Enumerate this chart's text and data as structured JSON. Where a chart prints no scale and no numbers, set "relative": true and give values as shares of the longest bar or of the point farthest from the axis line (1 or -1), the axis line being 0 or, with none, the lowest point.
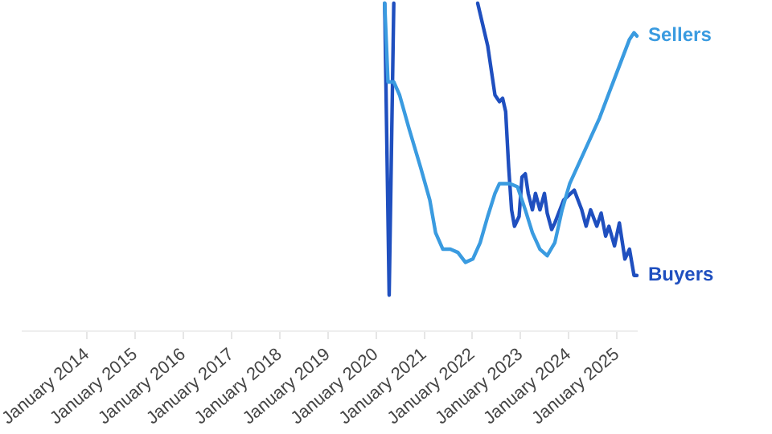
{
  "chart_data": {
    "type": "line",
    "relative": true,
    "legend": false,
    "xlim": [
      "2012-09",
      "2025-06"
    ],
    "xticks": [
      {
        "value": "2014-01",
        "label": "January 2014"
      },
      {
        "value": "2015-01",
        "label": "January 2015"
      },
      {
        "value": "2016-01",
        "label": "January 2016"
      },
      {
        "value": "2017-01",
        "label": "January 2017"
      },
      {
        "value": "2018-01",
        "label": "January 2018"
      },
      {
        "value": "2019-01",
        "label": "January 2019"
      },
      {
        "value": "2020-01",
        "label": "January 2020"
      },
      {
        "value": "2021-01",
        "label": "January 2021"
      },
      {
        "value": "2022-01",
        "label": "January 2022"
      },
      {
        "value": "2023-01",
        "label": "January 2023"
      },
      {
        "value": "2024-01",
        "label": "January 2024"
      },
      {
        "value": "2025-01",
        "label": "January 2025"
      }
    ],
    "series": [
      {
        "name": "Sellers",
        "color": "#3a9be0",
        "x": [
          "2020-03-07",
          "2020-04-01",
          "2020-05-15",
          "2020-06-28",
          "2020-09-06",
          "2020-12-04",
          "2021-02-12",
          "2021-03-28",
          "2021-05-22",
          "2021-07-18",
          "2021-09-13",
          "2021-11-09",
          "2022-01-04",
          "2022-03-01",
          "2022-04-27",
          "2022-06-21",
          "2022-07-25",
          "2022-10-13",
          "2022-12-09",
          "2023-02-06",
          "2023-04-01",
          "2023-05-28",
          "2023-07-22",
          "2023-09-18",
          "2023-11-12",
          "2024-01-09",
          "2024-05-01",
          "2024-08-22",
          "2024-12-13",
          "2025-04-06",
          "2025-05-10",
          "2025-06-01"
        ],
        "values": [
          1,
          0.76,
          0.76,
          0.72,
          0.62,
          0.5,
          0.4,
          0.3,
          0.25,
          0.25,
          0.24,
          0.21,
          0.22,
          0.27,
          0.35,
          0.42,
          0.45,
          0.45,
          0.44,
          0.37,
          0.3,
          0.25,
          0.23,
          0.27,
          0.37,
          0.45,
          0.55,
          0.65,
          0.77,
          0.89,
          0.91,
          0.9
        ]
      },
      {
        "name": "Buyers",
        "color": "#1f4fbf",
        "x": [
          "2020-03-07",
          "2020-04-10",
          "2020-05-15",
          "2021-06-01",
          "2022-02-10",
          "2022-04-27",
          "2022-06-21",
          "2022-07-25",
          "2022-08-18",
          "2022-09-10",
          "2022-10-03",
          "2022-10-25",
          "2022-11-16",
          "2022-12-21",
          "2023-01-12",
          "2023-02-06",
          "2023-02-28",
          "2023-04-01",
          "2023-04-24",
          "2023-05-28",
          "2023-07-01",
          "2023-07-22",
          "2023-08-25",
          "2023-09-18",
          "2023-11-24",
          "2024-02-12",
          "2024-04-09",
          "2024-05-12",
          "2024-06-15",
          "2024-08-01",
          "2024-09-03",
          "2024-10-07",
          "2024-11-01",
          "2024-12-13",
          "2025-01-19",
          "2025-03-02",
          "2025-04-06",
          "2025-05-10",
          "2025-06-01"
        ],
        "values": [
          1,
          0.11,
          1,
          null,
          1,
          0.87,
          0.72,
          0.7,
          0.71,
          0.67,
          0.5,
          0.37,
          0.32,
          0.35,
          0.47,
          0.48,
          0.42,
          0.37,
          0.42,
          0.37,
          0.42,
          0.36,
          0.31,
          0.33,
          0.4,
          0.43,
          0.37,
          0.32,
          0.37,
          0.32,
          0.36,
          0.29,
          0.32,
          0.26,
          0.33,
          0.22,
          0.25,
          0.17,
          0.17
        ]
      }
    ]
  }
}
